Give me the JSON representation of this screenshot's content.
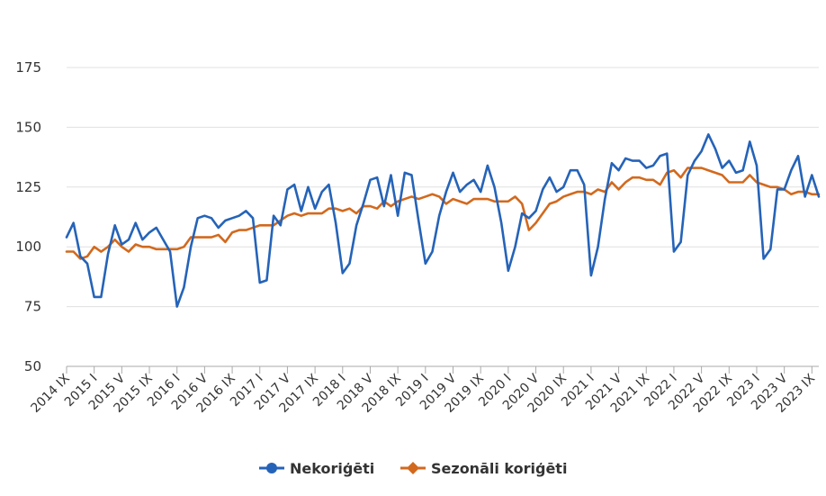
{
  "chart_data": {
    "type": "line",
    "title": "",
    "xlabel": "",
    "ylabel": "",
    "ylim": [
      50,
      175
    ],
    "yticks": [
      50,
      75,
      100,
      125,
      150,
      175
    ],
    "grid": true,
    "legend_position": "bottom",
    "x_tick_labels": [
      "2014 IX",
      "2015 I",
      "2015 V",
      "2015 IX",
      "2016 I",
      "2016 V",
      "2016 IX",
      "2017 I",
      "2017 V",
      "2017 IX",
      "2018 I",
      "2018 V",
      "2018 IX",
      "2019 I",
      "2019 V",
      "2019 IX",
      "2020 I",
      "2020 V",
      "2020 IX",
      "2021 I",
      "2021 V",
      "2021 IX",
      "2022 I",
      "2022 V",
      "2022 IX",
      "2023 I",
      "2023 V",
      "2023 IX"
    ],
    "series": [
      {
        "name": "Nekoriģēti",
        "color": "#2563b8",
        "marker": "circle",
        "values": [
          104,
          110,
          96,
          93,
          79,
          79,
          97,
          109,
          101,
          103,
          110,
          103,
          106,
          108,
          103,
          98,
          75,
          83,
          100,
          112,
          113,
          112,
          108,
          111,
          112,
          113,
          115,
          112,
          85,
          86,
          113,
          109,
          124,
          126,
          115,
          125,
          116,
          123,
          126,
          110,
          89,
          93,
          109,
          118,
          128,
          129,
          117,
          130,
          113,
          131,
          130,
          111,
          93,
          98,
          113,
          123,
          131,
          123,
          126,
          128,
          123,
          134,
          125,
          110,
          90,
          100,
          114,
          112,
          115,
          124,
          129,
          123,
          125,
          132,
          132,
          126,
          88,
          100,
          120,
          135,
          132,
          137,
          136,
          136,
          133,
          134,
          138,
          139,
          98,
          102,
          130,
          136,
          140,
          147,
          141,
          133,
          136,
          131,
          132,
          144,
          134,
          95,
          99,
          124,
          124,
          132,
          138,
          121,
          130,
          121
        ]
      },
      {
        "name": "Sezonāli koriģēti",
        "color": "#d2691e",
        "marker": "diamond",
        "values": [
          98,
          98,
          95,
          96,
          100,
          98,
          100,
          103,
          100,
          98,
          101,
          100,
          100,
          99,
          99,
          99,
          99,
          100,
          104,
          104,
          104,
          104,
          105,
          102,
          106,
          107,
          107,
          108,
          109,
          109,
          109,
          111,
          113,
          114,
          113,
          114,
          114,
          114,
          116,
          116,
          115,
          116,
          114,
          117,
          117,
          116,
          119,
          117,
          119,
          120,
          121,
          120,
          121,
          122,
          121,
          118,
          120,
          119,
          118,
          120,
          120,
          120,
          119,
          119,
          119,
          121,
          118,
          107,
          110,
          114,
          118,
          119,
          121,
          122,
          123,
          123,
          122,
          124,
          123,
          127,
          124,
          127,
          129,
          129,
          128,
          128,
          126,
          131,
          132,
          129,
          133,
          133,
          133,
          132,
          131,
          130,
          127,
          127,
          127,
          130,
          127,
          126,
          125,
          125,
          124,
          122,
          123,
          123,
          122,
          122
        ]
      }
    ]
  },
  "legend": {
    "items": [
      {
        "label": "Nekoriģēti",
        "color": "#2563b8"
      },
      {
        "label": "Sezonāli koriģēti",
        "color": "#d2691e"
      }
    ]
  }
}
